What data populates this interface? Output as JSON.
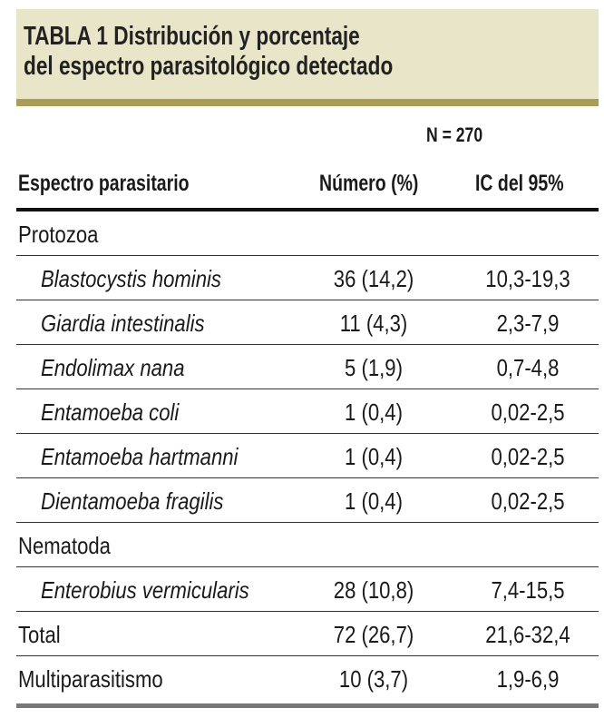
{
  "title_line1": "TABLA 1 Distribución y porcentaje",
  "title_line2": "del espectro parasitológico detectado",
  "n_label": "N = 270",
  "headers": [
    "Espectro parasitario",
    "Número (%)",
    "IC del 95%"
  ],
  "rows": [
    {
      "name": "Protozoa",
      "number": "",
      "ci": "",
      "italic": false
    },
    {
      "name": "Blastocystis hominis",
      "number": "36 (14,2)",
      "ci": "10,3-19,3",
      "italic": true
    },
    {
      "name": "Giardia intestinalis",
      "number": "11 (4,3)",
      "ci": "2,3-7,9",
      "italic": true
    },
    {
      "name": "Endolimax nana",
      "number": "5 (1,9)",
      "ci": "0,7-4,8",
      "italic": true
    },
    {
      "name": "Entamoeba coli",
      "number": "1 (0,4)",
      "ci": "0,02-2,5",
      "italic": true
    },
    {
      "name": "Entamoeba hartmanni",
      "number": "1 (0,4)",
      "ci": "0,02-2,5",
      "italic": true
    },
    {
      "name": "Dientamoeba fragilis",
      "number": "1 (0,4)",
      "ci": "0,02-2,5",
      "italic": true
    },
    {
      "name": "Nematoda",
      "number": "",
      "ci": "",
      "italic": false
    },
    {
      "name": "Enterobius vermicularis",
      "number": "28 (10,8)",
      "ci": "7,4-15,5",
      "italic": true
    },
    {
      "name": "Total",
      "number": "72 (26,7)",
      "ci": "21,6-32,4",
      "italic": false
    },
    {
      "name": "Multiparasitismo",
      "number": "10 (3,7)",
      "ci": "1,9-6,9",
      "italic": false
    }
  ],
  "colors": {
    "title_bg": "#e9e5c9",
    "title_bar": "#a99d57"
  }
}
